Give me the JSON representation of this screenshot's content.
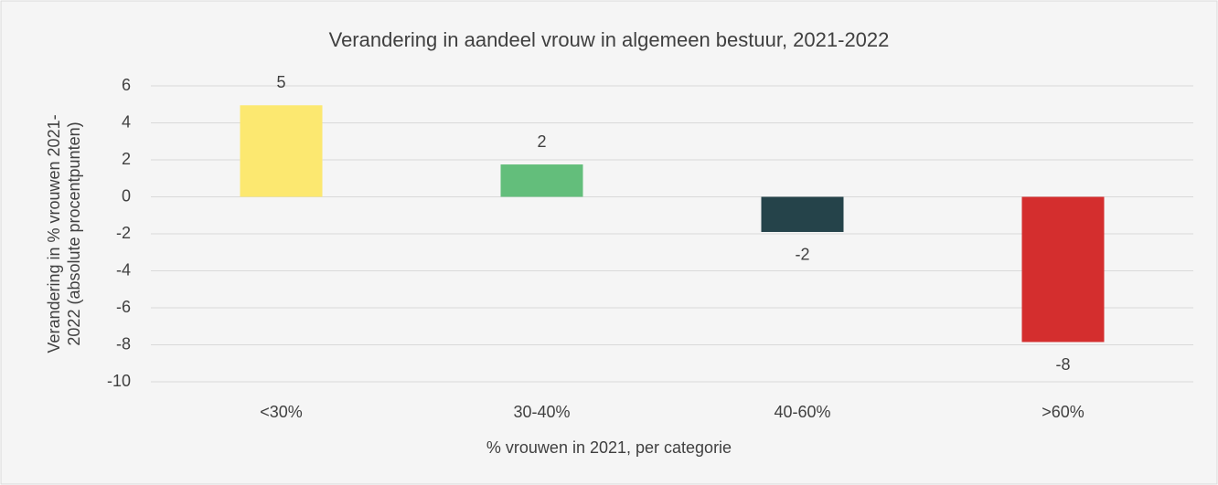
{
  "chart_data": {
    "type": "bar",
    "title": "Verandering in aandeel vrouw in algemeen bestuur, 2021-2022",
    "xlabel": "% vrouwen in 2021, per categorie",
    "ylabel": [
      "Verandering in % vrouwen 2021-",
      "2022 (absolute procentpunten)"
    ],
    "categories": [
      "<30%",
      "30-40%",
      "40-60%",
      ">60%"
    ],
    "values": [
      4.95,
      1.75,
      -1.9,
      -7.85
    ],
    "value_labels": [
      "5",
      "2",
      "-2",
      "-8"
    ],
    "colors": [
      "#fce870",
      "#63be7b",
      "#25434a",
      "#d42e2e"
    ],
    "ylim": [
      -10,
      6
    ],
    "yticks": [
      -10,
      -8,
      -6,
      -4,
      -2,
      0,
      2,
      4,
      6
    ],
    "grid": true
  }
}
